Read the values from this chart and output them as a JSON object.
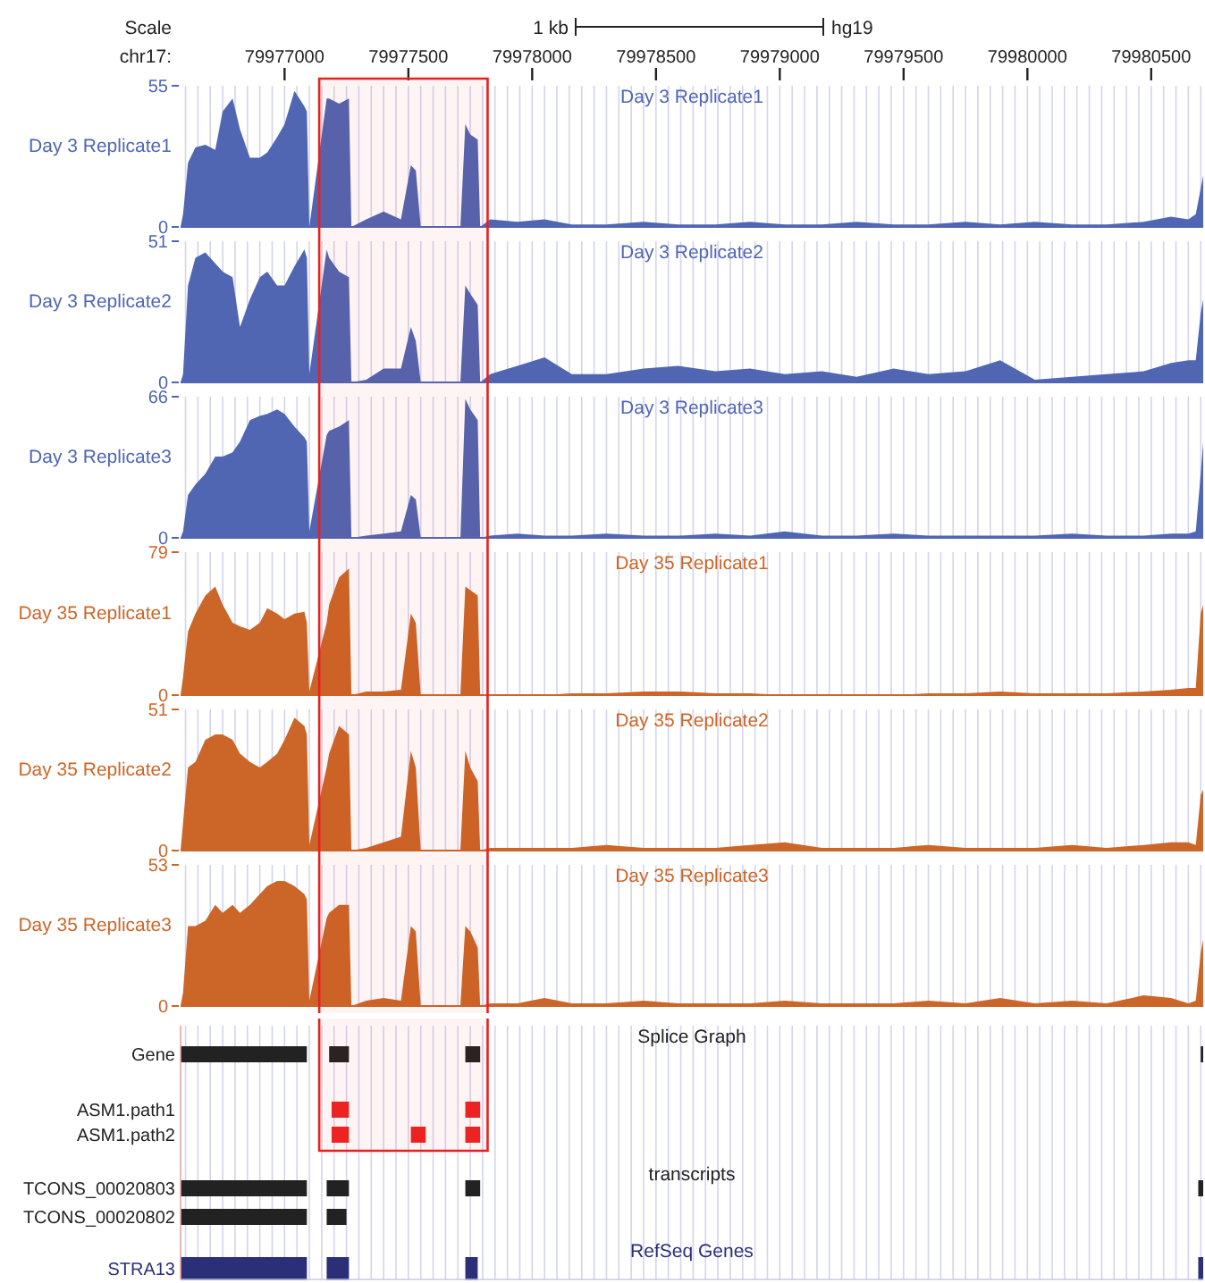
{
  "chart_data": [
    {
      "type": "area",
      "title": "Day 3 Replicate1",
      "bands": [
        {
          "axis": "x",
          "from": 79977140,
          "to": 79977820,
          "color": "#e82020"
        }
      ],
      "ylabel": "Day 3 Replicate1",
      "xlabel": "chr17:",
      "annotations": [
        "Scale",
        "1 kb",
        "hg19"
      ],
      "color": "#5066b3",
      "ylim": [
        0,
        55
      ],
      "yticks": [
        0,
        55
      ],
      "xlim": [
        79976580,
        79980710
      ],
      "grid": "x",
      "x": [
        79976580,
        79976590,
        79976610,
        79976640,
        79976680,
        79976720,
        79976750,
        79976790,
        79976820,
        79976860,
        79976900,
        79976930,
        79976970,
        79977000,
        79977040,
        79977080,
        79977090,
        79977100,
        79977170,
        79977180,
        79977220,
        79977260,
        79977270,
        79977330,
        79977400,
        79977470,
        79977510,
        79977530,
        79977550,
        79977710,
        79977730,
        79977750,
        79977780,
        79977790,
        79977830,
        79977940,
        79978050,
        79978160,
        79978300,
        79978450,
        79978590,
        79978740,
        79978880,
        79979020,
        79979170,
        79979310,
        79979460,
        79979600,
        79979750,
        79979890,
        79980030,
        79980180,
        79980320,
        79980470,
        79980580,
        79980650,
        79980680,
        79980700,
        79980710
      ],
      "values": [
        0,
        5,
        25,
        31,
        32,
        30,
        45,
        50,
        38,
        27,
        27,
        29,
        35,
        40,
        53,
        47,
        45,
        0,
        50,
        50,
        48,
        50,
        0,
        3,
        6,
        3,
        24,
        22,
        0,
        0,
        40,
        36,
        34,
        0,
        3,
        2,
        3,
        1,
        1,
        2,
        1,
        1,
        2,
        1,
        1,
        2,
        1,
        1,
        2,
        1,
        2,
        1,
        1,
        2,
        4,
        3,
        5,
        15,
        20
      ],
      "xticks": [
        {
          "value": 79976600,
          "label": null
        },
        {
          "value": 79976650,
          "label": null
        },
        {
          "value": 79976700,
          "label": null
        },
        {
          "value": 79976750,
          "label": null
        },
        {
          "value": 79976800,
          "label": null
        },
        {
          "value": 79976850,
          "label": null
        },
        {
          "value": 79976900,
          "label": null
        },
        {
          "value": 79976950,
          "label": null
        },
        79977000,
        {
          "value": 79977050,
          "label": null
        },
        {
          "value": 79977100,
          "label": null
        },
        {
          "value": 79977150,
          "label": null
        },
        {
          "value": 79977200,
          "label": null
        },
        {
          "value": 79977250,
          "label": null
        },
        {
          "value": 79977300,
          "label": null
        },
        {
          "value": 79977350,
          "label": null
        },
        {
          "value": 79977400,
          "label": null
        },
        {
          "value": 79977450,
          "label": null
        },
        79977500,
        {
          "value": 79977550,
          "label": null
        },
        {
          "value": 79977600,
          "label": null
        },
        {
          "value": 79977650,
          "label": null
        },
        {
          "value": 79977700,
          "label": null
        },
        {
          "value": 79977750,
          "label": null
        },
        {
          "value": 79977800,
          "label": null
        },
        {
          "value": 79977850,
          "label": null
        },
        {
          "value": 79977900,
          "label": null
        },
        {
          "value": 79977950,
          "label": null
        },
        79978000,
        {
          "value": 79978050,
          "label": null
        },
        {
          "value": 79978100,
          "label": null
        },
        {
          "value": 79978150,
          "label": null
        },
        {
          "value": 79978200,
          "label": null
        },
        {
          "value": 79978250,
          "label": null
        },
        {
          "value": 79978300,
          "label": null
        },
        {
          "value": 79978350,
          "label": null
        },
        {
          "value": 79978400,
          "label": null
        },
        {
          "value": 79978450,
          "label": null
        },
        79978500,
        {
          "value": 79978550,
          "label": null
        },
        {
          "value": 79978600,
          "label": null
        },
        {
          "value": 79978650,
          "label": null
        },
        {
          "value": 79978700,
          "label": null
        },
        {
          "value": 79978750,
          "label": null
        },
        {
          "value": 79978800,
          "label": null
        },
        {
          "value": 79978850,
          "label": null
        },
        {
          "value": 79978900,
          "label": null
        },
        {
          "value": 79978950,
          "label": null
        },
        79979000,
        {
          "value": 79979050,
          "label": null
        },
        {
          "value": 79979100,
          "label": null
        },
        {
          "value": 79979150,
          "label": null
        },
        {
          "value": 79979200,
          "label": null
        },
        {
          "value": 79979250,
          "label": null
        },
        {
          "value": 79979300,
          "label": null
        },
        {
          "value": 79979350,
          "label": null
        },
        {
          "value": 79979400,
          "label": null
        },
        {
          "value": 79979450,
          "label": null
        },
        79979500,
        {
          "value": 79979550,
          "label": null
        },
        {
          "value": 79979600,
          "label": null
        },
        {
          "value": 79979650,
          "label": null
        },
        {
          "value": 79979700,
          "label": null
        },
        {
          "value": 79979750,
          "label": null
        },
        {
          "value": 79979800,
          "label": null
        },
        {
          "value": 79979850,
          "label": null
        },
        {
          "value": 79979900,
          "label": null
        },
        {
          "value": 79979950,
          "label": null
        },
        79980000,
        {
          "value": 79980050,
          "label": null
        },
        {
          "value": 79980100,
          "label": null
        },
        {
          "value": 79980150,
          "label": null
        },
        {
          "value": 79980200,
          "label": null
        },
        {
          "value": 79980250,
          "label": null
        },
        {
          "value": 79980300,
          "label": null
        },
        {
          "value": 79980350,
          "label": null
        },
        {
          "value": 79980400,
          "label": null
        },
        {
          "value": 79980450,
          "label": null
        },
        79980500,
        {
          "value": 79980550,
          "label": null
        },
        {
          "value": 79980600,
          "label": null
        },
        {
          "value": 79980650,
          "label": null
        },
        {
          "value": 79980700,
          "label": null
        }
      ]
    },
    {
      "type": "area",
      "title": "Day 3 Replicate2",
      "bands": [
        {
          "axis": "x",
          "from": 79977140,
          "to": 79977820,
          "color": "#e82020"
        }
      ],
      "ylabel": "Day 3 Replicate2",
      "color": "#5066b3",
      "ylim": [
        0,
        51
      ],
      "yticks": [
        0,
        51
      ],
      "xlim": [
        79976580,
        79980710
      ],
      "grid": "x",
      "tick_labels": "y",
      "x": [
        79976580,
        79976590,
        79976610,
        79976640,
        79976680,
        79976720,
        79976750,
        79976790,
        79976820,
        79976860,
        79976900,
        79976930,
        79976970,
        79977000,
        79977040,
        79977080,
        79977090,
        79977100,
        79977170,
        79977180,
        79977220,
        79977260,
        79977270,
        79977330,
        79977400,
        79977470,
        79977510,
        79977530,
        79977550,
        79977710,
        79977730,
        79977750,
        79977780,
        79977790,
        79977830,
        79977940,
        79978050,
        79978160,
        79978300,
        79978450,
        79978590,
        79978740,
        79978880,
        79979020,
        79979170,
        79979310,
        79979460,
        79979600,
        79979750,
        79979890,
        79980030,
        79980180,
        79980320,
        79980470,
        79980580,
        79980650,
        79980680,
        79980700,
        79980710
      ],
      "values": [
        0,
        3,
        35,
        45,
        47,
        43,
        40,
        38,
        20,
        30,
        38,
        40,
        35,
        35,
        42,
        48,
        45,
        3,
        48,
        45,
        40,
        38,
        0,
        1,
        5,
        5,
        20,
        15,
        0,
        0,
        35,
        32,
        28,
        0,
        3,
        6,
        9,
        3,
        3,
        5,
        6,
        4,
        5,
        3,
        4,
        2,
        5,
        3,
        4,
        8,
        1,
        2,
        3,
        4,
        7,
        8,
        8,
        25,
        30
      ],
      "xticks": [
        79976600,
        79976650,
        79976700,
        79976750,
        79976800,
        79976850,
        79976900,
        79976950,
        79977000,
        79977050,
        79977100,
        79977150,
        79977200,
        79977250,
        79977300,
        79977350,
        79977400,
        79977450,
        79977500,
        79977550,
        79977600,
        79977650,
        79977700,
        79977750,
        79977800,
        79977850,
        79977900,
        79977950,
        79978000,
        79978050,
        79978100,
        79978150,
        79978200,
        79978250,
        79978300,
        79978350,
        79978400,
        79978450,
        79978500,
        79978550,
        79978600,
        79978650,
        79978700,
        79978750,
        79978800,
        79978850,
        79978900,
        79978950,
        79979000,
        79979050,
        79979100,
        79979150,
        79979200,
        79979250,
        79979300,
        79979350,
        79979400,
        79979450,
        79979500,
        79979550,
        79979600,
        79979650,
        79979700,
        79979750,
        79979800,
        79979850,
        79979900,
        79979950,
        79980000,
        79980050,
        79980100,
        79980150,
        79980200,
        79980250,
        79980300,
        79980350,
        79980400,
        79980450,
        79980500,
        79980550,
        79980600,
        79980650,
        79980700
      ]
    },
    {
      "type": "area",
      "title": "Day 3 Replicate3",
      "bands": [
        {
          "axis": "x",
          "from": 79977140,
          "to": 79977820,
          "color": "#e82020"
        }
      ],
      "ylabel": "Day 3 Replicate3",
      "color": "#5066b3",
      "ylim": [
        0,
        66
      ],
      "yticks": [
        0,
        66
      ],
      "xlim": [
        79976580,
        79980710
      ],
      "grid": "x",
      "tick_labels": "y",
      "x": [
        79976580,
        79976590,
        79976610,
        79976640,
        79976680,
        79976720,
        79976750,
        79976790,
        79976820,
        79976860,
        79976900,
        79976930,
        79976970,
        79977000,
        79977040,
        79977080,
        79977090,
        79977100,
        79977170,
        79977180,
        79977220,
        79977260,
        79977270,
        79977330,
        79977400,
        79977470,
        79977510,
        79977530,
        79977550,
        79977710,
        79977730,
        79977750,
        79977780,
        79977790,
        79977830,
        79977940,
        79978050,
        79978160,
        79978300,
        79978450,
        79978590,
        79978740,
        79978880,
        79979020,
        79979170,
        79979310,
        79979460,
        79979600,
        79979750,
        79979890,
        79980030,
        79980180,
        79980320,
        79980470,
        79980580,
        79980650,
        79980680,
        79980700,
        79980710
      ],
      "values": [
        0,
        3,
        20,
        25,
        30,
        38,
        38,
        40,
        45,
        55,
        57,
        58,
        60,
        58,
        52,
        47,
        45,
        3,
        48,
        50,
        52,
        55,
        0,
        1,
        2,
        3,
        20,
        18,
        0,
        0,
        65,
        60,
        55,
        0,
        1,
        2,
        1,
        1,
        2,
        1,
        1,
        2,
        1,
        3,
        1,
        1,
        2,
        1,
        1,
        1,
        1,
        2,
        1,
        1,
        2,
        2,
        3,
        30,
        45
      ],
      "xticks": [
        79976600,
        79976650,
        79976700,
        79976750,
        79976800,
        79976850,
        79976900,
        79976950,
        79977000,
        79977050,
        79977100,
        79977150,
        79977200,
        79977250,
        79977300,
        79977350,
        79977400,
        79977450,
        79977500,
        79977550,
        79977600,
        79977650,
        79977700,
        79977750,
        79977800,
        79977850,
        79977900,
        79977950,
        79978000,
        79978050,
        79978100,
        79978150,
        79978200,
        79978250,
        79978300,
        79978350,
        79978400,
        79978450,
        79978500,
        79978550,
        79978600,
        79978650,
        79978700,
        79978750,
        79978800,
        79978850,
        79978900,
        79978950,
        79979000,
        79979050,
        79979100,
        79979150,
        79979200,
        79979250,
        79979300,
        79979350,
        79979400,
        79979450,
        79979500,
        79979550,
        79979600,
        79979650,
        79979700,
        79979750,
        79979800,
        79979850,
        79979900,
        79979950,
        79980000,
        79980050,
        79980100,
        79980150,
        79980200,
        79980250,
        79980300,
        79980350,
        79980400,
        79980450,
        79980500,
        79980550,
        79980600,
        79980650,
        79980700
      ]
    },
    {
      "type": "area",
      "title": "Day 35 Replicate1",
      "bands": [
        {
          "axis": "x",
          "from": 79977140,
          "to": 79977820,
          "color": "#e82020"
        }
      ],
      "ylabel": "Day 35 Replicate1",
      "color": "#cc6628",
      "ylim": [
        0,
        79
      ],
      "yticks": [
        0,
        79
      ],
      "xlim": [
        79976580,
        79980710
      ],
      "grid": "x",
      "tick_labels": "y",
      "x": [
        79976580,
        79976590,
        79976610,
        79976640,
        79976680,
        79976720,
        79976750,
        79976790,
        79976820,
        79976860,
        79976900,
        79976930,
        79976970,
        79977000,
        79977040,
        79977080,
        79977090,
        79977100,
        79977170,
        79977180,
        79977220,
        79977260,
        79977270,
        79977330,
        79977400,
        79977470,
        79977510,
        79977530,
        79977550,
        79977710,
        79977730,
        79977750,
        79977780,
        79977790,
        79977830,
        79977940,
        79978050,
        79978160,
        79978300,
        79978450,
        79978590,
        79978740,
        79978880,
        79979020,
        79979170,
        79979310,
        79979460,
        79979600,
        79979750,
        79979890,
        79980030,
        79980180,
        79980320,
        79980470,
        79980580,
        79980650,
        79980680,
        79980700,
        79980710
      ],
      "values": [
        0,
        10,
        35,
        45,
        55,
        60,
        50,
        40,
        38,
        36,
        40,
        48,
        45,
        42,
        45,
        46,
        40,
        2,
        40,
        50,
        65,
        70,
        0,
        2,
        2,
        3,
        45,
        40,
        0,
        0,
        60,
        58,
        55,
        0,
        0,
        0,
        0,
        1,
        1,
        2,
        2,
        1,
        1,
        0,
        0,
        0,
        0,
        1,
        1,
        2,
        1,
        1,
        1,
        2,
        3,
        4,
        4,
        45,
        50
      ],
      "xticks": [
        79976600,
        79976650,
        79976700,
        79976750,
        79976800,
        79976850,
        79976900,
        79976950,
        79977000,
        79977050,
        79977100,
        79977150,
        79977200,
        79977250,
        79977300,
        79977350,
        79977400,
        79977450,
        79977500,
        79977550,
        79977600,
        79977650,
        79977700,
        79977750,
        79977800,
        79977850,
        79977900,
        79977950,
        79978000,
        79978050,
        79978100,
        79978150,
        79978200,
        79978250,
        79978300,
        79978350,
        79978400,
        79978450,
        79978500,
        79978550,
        79978600,
        79978650,
        79978700,
        79978750,
        79978800,
        79978850,
        79978900,
        79978950,
        79979000,
        79979050,
        79979100,
        79979150,
        79979200,
        79979250,
        79979300,
        79979350,
        79979400,
        79979450,
        79979500,
        79979550,
        79979600,
        79979650,
        79979700,
        79979750,
        79979800,
        79979850,
        79979900,
        79979950,
        79980000,
        79980050,
        79980100,
        79980150,
        79980200,
        79980250,
        79980300,
        79980350,
        79980400,
        79980450,
        79980500,
        79980550,
        79980600,
        79980650,
        79980700
      ]
    },
    {
      "type": "area",
      "title": "Day 35 Replicate2",
      "bands": [
        {
          "axis": "x",
          "from": 79977140,
          "to": 79977820,
          "color": "#e82020"
        }
      ],
      "ylabel": "Day 35 Replicate2",
      "color": "#cc6628",
      "ylim": [
        0,
        51
      ],
      "yticks": [
        0,
        51
      ],
      "xlim": [
        79976580,
        79980710
      ],
      "grid": "x",
      "tick_labels": "y",
      "x": [
        79976580,
        79976590,
        79976610,
        79976640,
        79976680,
        79976720,
        79976750,
        79976790,
        79976820,
        79976860,
        79976900,
        79976930,
        79976970,
        79977000,
        79977040,
        79977080,
        79977090,
        79977100,
        79977170,
        79977180,
        79977220,
        79977260,
        79977270,
        79977330,
        79977400,
        79977470,
        79977510,
        79977530,
        79977550,
        79977710,
        79977730,
        79977750,
        79977780,
        79977790,
        79977830,
        79977940,
        79978050,
        79978160,
        79978300,
        79978450,
        79978590,
        79978740,
        79978880,
        79979020,
        79979170,
        79979310,
        79979460,
        79979600,
        79979750,
        79979890,
        79980030,
        79980180,
        79980320,
        79980470,
        79980580,
        79980650,
        79980680,
        79980700,
        79980710
      ],
      "values": [
        0,
        10,
        30,
        32,
        40,
        42,
        42,
        40,
        35,
        32,
        30,
        32,
        35,
        40,
        48,
        45,
        42,
        2,
        30,
        35,
        45,
        42,
        0,
        1,
        3,
        5,
        36,
        30,
        0,
        0,
        36,
        30,
        25,
        0,
        1,
        1,
        1,
        1,
        2,
        1,
        1,
        1,
        2,
        3,
        1,
        1,
        1,
        2,
        1,
        1,
        1,
        2,
        1,
        2,
        3,
        3,
        2,
        20,
        22
      ],
      "xticks": [
        79976600,
        79976650,
        79976700,
        79976750,
        79976800,
        79976850,
        79976900,
        79976950,
        79977000,
        79977050,
        79977100,
        79977150,
        79977200,
        79977250,
        79977300,
        79977350,
        79977400,
        79977450,
        79977500,
        79977550,
        79977600,
        79977650,
        79977700,
        79977750,
        79977800,
        79977850,
        79977900,
        79977950,
        79978000,
        79978050,
        79978100,
        79978150,
        79978200,
        79978250,
        79978300,
        79978350,
        79978400,
        79978450,
        79978500,
        79978550,
        79978600,
        79978650,
        79978700,
        79978750,
        79978800,
        79978850,
        79978900,
        79978950,
        79979000,
        79979050,
        79979100,
        79979150,
        79979200,
        79979250,
        79979300,
        79979350,
        79979400,
        79979450,
        79979500,
        79979550,
        79979600,
        79979650,
        79979700,
        79979750,
        79979800,
        79979850,
        79979900,
        79979950,
        79980000,
        79980050,
        79980100,
        79980150,
        79980200,
        79980250,
        79980300,
        79980350,
        79980400,
        79980450,
        79980500,
        79980550,
        79980600,
        79980650,
        79980700
      ]
    },
    {
      "type": "area",
      "title": "Day 35 Replicate3",
      "bands": [
        {
          "axis": "x",
          "from": 79977140,
          "to": 79977820,
          "color": "#e82020"
        }
      ],
      "ylabel": "Day 35 Replicate3",
      "color": "#cc6628",
      "ylim": [
        0,
        53
      ],
      "yticks": [
        0,
        53
      ],
      "xlim": [
        79976580,
        79980710
      ],
      "grid": "x",
      "tick_labels": "y",
      "x": [
        79976580,
        79976590,
        79976610,
        79976640,
        79976680,
        79976720,
        79976750,
        79976790,
        79976820,
        79976860,
        79976900,
        79976930,
        79976970,
        79977000,
        79977040,
        79977080,
        79977090,
        79977100,
        79977170,
        79977180,
        79977220,
        79977260,
        79977270,
        79977330,
        79977400,
        79977470,
        79977510,
        79977530,
        79977550,
        79977710,
        79977730,
        79977750,
        79977780,
        79977790,
        79977830,
        79977940,
        79978050,
        79978160,
        79978300,
        79978450,
        79978590,
        79978740,
        79978880,
        79979020,
        79979170,
        79979310,
        79979460,
        79979600,
        79979750,
        79979890,
        79980030,
        79980180,
        79980320,
        79980470,
        79980580,
        79980650,
        79980680,
        79980700,
        79980710
      ],
      "values": [
        0,
        5,
        30,
        30,
        32,
        38,
        35,
        38,
        35,
        38,
        42,
        45,
        47,
        47,
        45,
        42,
        40,
        2,
        33,
        35,
        38,
        38,
        0,
        2,
        3,
        2,
        30,
        28,
        0,
        0,
        30,
        28,
        22,
        0,
        1,
        1,
        3,
        1,
        1,
        2,
        1,
        1,
        1,
        2,
        1,
        1,
        1,
        2,
        1,
        3,
        1,
        2,
        1,
        4,
        3,
        1,
        2,
        20,
        25
      ],
      "xticks": [
        79976600,
        79976650,
        79976700,
        79976750,
        79976800,
        79976850,
        79976900,
        79976950,
        79977000,
        79977050,
        79977100,
        79977150,
        79977200,
        79977250,
        79977300,
        79977350,
        79977400,
        79977450,
        79977500,
        79977550,
        79977600,
        79977650,
        79977700,
        79977750,
        79977800,
        79977850,
        79977900,
        79977950,
        79978000,
        79978050,
        79978100,
        79978150,
        79978200,
        79978250,
        79978300,
        79978350,
        79978400,
        79978450,
        79978500,
        79978550,
        79978600,
        79978650,
        79978700,
        79978750,
        79978800,
        79978850,
        79978900,
        79978950,
        79979000,
        79979050,
        79979100,
        79979150,
        79979200,
        79979250,
        79979300,
        79979350,
        79979400,
        79979450,
        79979500,
        79979550,
        79979600,
        79979650,
        79979700,
        79979750,
        79979800,
        79979850,
        79979900,
        79979950,
        79980000,
        79980050,
        79980100,
        79980150,
        79980200,
        79980250,
        79980300,
        79980350,
        79980400,
        79980450,
        79980500,
        79980550,
        79980600,
        79980650,
        79980700
      ]
    },
    {
      "type": "bar",
      "orientation": "horizontal",
      "annotations": [
        "Splice Graph",
        "transcripts",
        "RefSeq Genes"
      ],
      "bands": [
        {
          "axis": "x",
          "from": 79977140,
          "to": 79977820,
          "color": "#e82020"
        }
      ],
      "categories": [
        "Gene",
        "ASM1.path1",
        "ASM1.path2",
        "TCONS_00020803",
        "TCONS_00020802",
        "STRA13"
      ],
      "xlim": [
        79976580,
        79980710
      ],
      "grid": "x",
      "tick_labels": "y",
      "series": [
        {
          "base": [
            79976580,
            79977190,
            79977190,
            79976580,
            79976580,
            79976580
          ],
          "values": [
            510,
            70,
            70,
            510,
            510,
            510
          ],
          "colors": [
            "#222222",
            "#ee2222",
            "#ee2222",
            "#222222",
            "#222222",
            "#2b2f78"
          ]
        },
        {
          "base": [
            79977180,
            79977730,
            79977510,
            79977170,
            79977170,
            79977170
          ],
          "values": [
            80,
            60,
            60,
            90,
            80,
            90
          ],
          "colors": [
            "#222222",
            "#ee2222",
            "#ee2222",
            "#222222",
            "#222222",
            "#2b2f78"
          ]
        },
        {
          "base": [
            79977730,
            null,
            79977730,
            79977730,
            null,
            79977730
          ],
          "values": [
            60,
            null,
            60,
            60,
            null,
            50
          ],
          "colors": [
            "#222222",
            null,
            "#ee2222",
            "#222222",
            null,
            "#2b2f78"
          ]
        },
        {
          "base": [
            79980700,
            null,
            null,
            79980690,
            null,
            79980690
          ],
          "values": [
            10,
            null,
            null,
            20,
            null,
            20
          ],
          "colors": [
            "#222222",
            null,
            null,
            "#222222",
            null,
            "#2b2f78"
          ]
        }
      ],
      "xticks": [
        79976600,
        79976650,
        79976700,
        79976750,
        79976800,
        79976850,
        79976900,
        79976950,
        79977000,
        79977050,
        79977100,
        79977150,
        79977200,
        79977250,
        79977300,
        79977350,
        79977400,
        79977450,
        79977500,
        79977550,
        79977600,
        79977650,
        79977700,
        79977750,
        79977800,
        79977850,
        79977900,
        79977950,
        79978000,
        79978050,
        79978100,
        79978150,
        79978200,
        79978250,
        79978300,
        79978350,
        79978400,
        79978450,
        79978500,
        79978550,
        79978600,
        79978650,
        79978700,
        79978750,
        79978800,
        79978850,
        79978900,
        79978950,
        79979000,
        79979050,
        79979100,
        79979150,
        79979200,
        79979250,
        79979300,
        79979350,
        79979400,
        79979450,
        79979500,
        79979550,
        79979600,
        79979650,
        79979700,
        79979750,
        79979800,
        79979850,
        79979900,
        79979950,
        79980000,
        79980050,
        79980100,
        79980150,
        79980200,
        79980250,
        79980300,
        79980350,
        79980400,
        79980450,
        79980500,
        79980550,
        79980600,
        79980650,
        79980700
      ]
    }
  ]
}
